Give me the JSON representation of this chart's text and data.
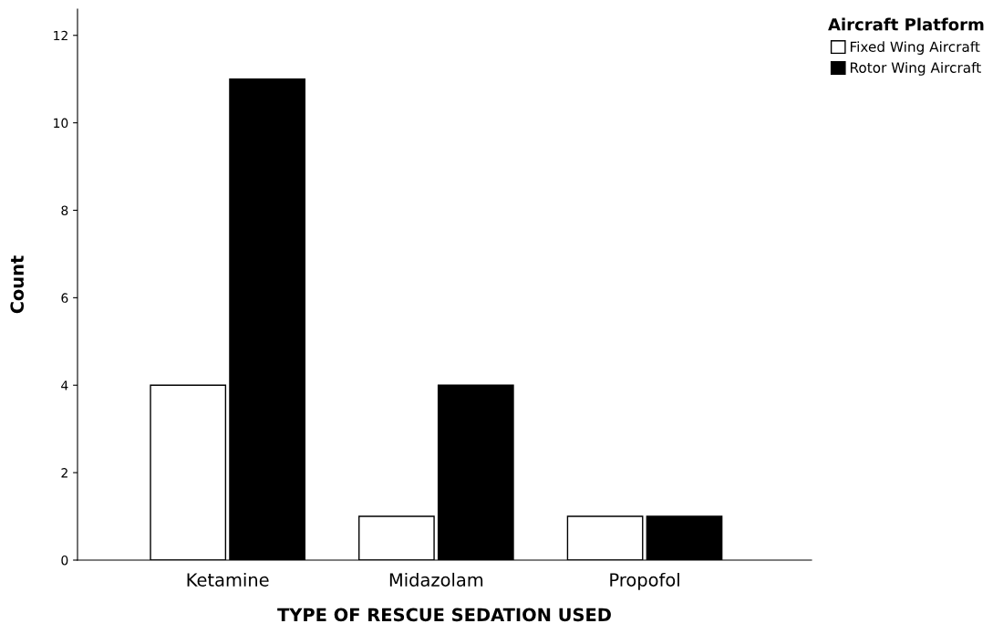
{
  "chart_data": {
    "type": "bar",
    "xlabel": "TYPE OF RESCUE SEDATION USED",
    "ylabel": "Count",
    "legend_title": "Aircraft Platform",
    "categories": [
      "Ketamine",
      "Midazolam",
      "Propofol"
    ],
    "series": [
      {
        "name": "Fixed Wing Aircraft",
        "color": "#ffffff",
        "values": [
          4,
          1,
          1
        ]
      },
      {
        "name": "Rotor Wing Aircraft",
        "color": "#000000",
        "values": [
          11,
          4,
          1
        ]
      }
    ],
    "ylim": [
      0,
      12.6
    ],
    "yticks": [
      0,
      2,
      4,
      6,
      8,
      10,
      12
    ],
    "grid": false,
    "legend": "top right"
  }
}
